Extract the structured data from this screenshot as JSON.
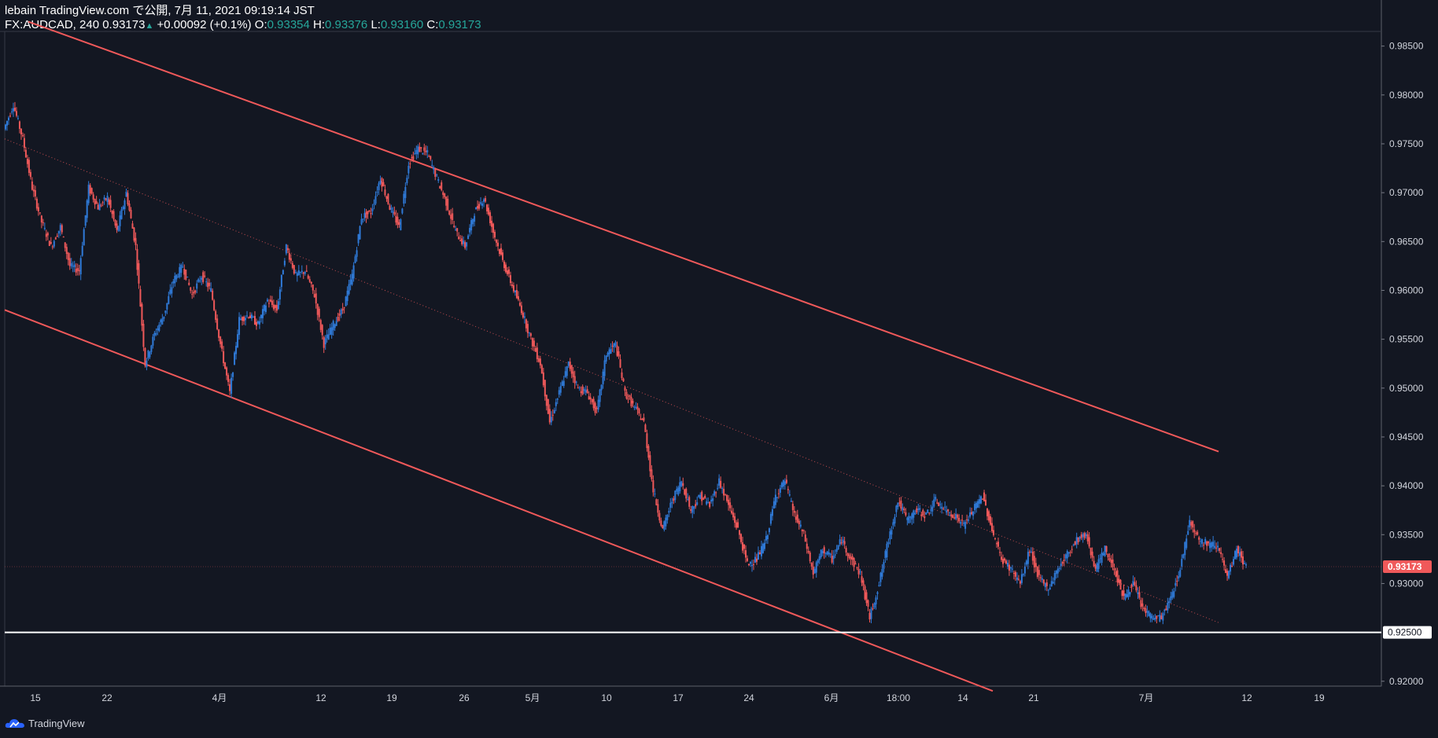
{
  "header": {
    "published": "lebain TradingView.com で公開, 7月 11, 2021 09:19:14 JST",
    "symbol": "FX:AUDCAD, 240",
    "last": "0.93173",
    "change": "+0.00092 (+0.1%)",
    "o_label": "O:",
    "o_val": "0.93354",
    "h_label": "H:",
    "h_val": "0.93376",
    "l_label": "L:",
    "l_val": "0.93160",
    "c_label": "C:",
    "c_val": "0.93173"
  },
  "footer": {
    "brand": "TradingView"
  },
  "colors": {
    "background": "#131722",
    "up": "#2f7ad8",
    "down": "#f0595a",
    "channel": "#f0595a",
    "support": "#ffffff",
    "axis_text": "#d1d4dc"
  },
  "chart_data": {
    "type": "candlestick",
    "ylim": [
      0.9195,
      0.9865
    ],
    "y_ticks": [
      "0.98500",
      "0.98000",
      "0.97500",
      "0.97000",
      "0.96500",
      "0.96000",
      "0.95500",
      "0.95000",
      "0.94500",
      "0.94000",
      "0.93500",
      "0.93000",
      "0.92000"
    ],
    "x_ticks": [
      "15",
      "22",
      "4月",
      "12",
      "19",
      "26",
      "5月",
      "10",
      "17",
      "24",
      "6月",
      "18:00",
      "14",
      "21",
      "7月",
      "12",
      "19"
    ],
    "price_label": "0.93173",
    "support_label": "0.92500",
    "support_level": 0.925,
    "path": [
      0.9765,
      0.979,
      0.9755,
      0.9705,
      0.967,
      0.9645,
      0.9665,
      0.9625,
      0.962,
      0.9705,
      0.9685,
      0.9695,
      0.966,
      0.97,
      0.9645,
      0.9525,
      0.9555,
      0.9575,
      0.961,
      0.9625,
      0.9595,
      0.9615,
      0.96,
      0.9545,
      0.9495,
      0.957,
      0.9575,
      0.9565,
      0.959,
      0.958,
      0.9645,
      0.9615,
      0.962,
      0.9595,
      0.9545,
      0.9565,
      0.958,
      0.9615,
      0.9675,
      0.968,
      0.9715,
      0.9685,
      0.9665,
      0.973,
      0.9745,
      0.974,
      0.9715,
      0.969,
      0.966,
      0.9645,
      0.968,
      0.9695,
      0.966,
      0.963,
      0.9605,
      0.958,
      0.955,
      0.9525,
      0.9465,
      0.9495,
      0.9525,
      0.95,
      0.9495,
      0.9475,
      0.9535,
      0.9545,
      0.9495,
      0.948,
      0.9465,
      0.9395,
      0.9355,
      0.9385,
      0.9405,
      0.9375,
      0.939,
      0.938,
      0.9405,
      0.938,
      0.9355,
      0.932,
      0.9325,
      0.9345,
      0.939,
      0.9405,
      0.937,
      0.935,
      0.931,
      0.9335,
      0.9325,
      0.9345,
      0.9325,
      0.931,
      0.9265,
      0.93,
      0.9345,
      0.9385,
      0.9365,
      0.9375,
      0.937,
      0.9385,
      0.9375,
      0.937,
      0.936,
      0.9375,
      0.939,
      0.9355,
      0.9325,
      0.9315,
      0.93,
      0.9335,
      0.9305,
      0.9295,
      0.9315,
      0.933,
      0.9345,
      0.935,
      0.9315,
      0.9335,
      0.9315,
      0.9285,
      0.93,
      0.9275,
      0.9265,
      0.9265,
      0.9285,
      0.9315,
      0.9365,
      0.9345,
      0.934,
      0.934,
      0.9305,
      0.9335,
      0.9317
    ],
    "channel_upper": {
      "from": [
        2.5,
        0.9875
      ],
      "to": [
        129,
        0.9435
      ]
    },
    "channel_lower": {
      "from": [
        0,
        0.958
      ],
      "to": [
        105,
        0.919
      ]
    },
    "channel_mid": {
      "from": [
        0,
        0.9755
      ],
      "to": [
        129,
        0.926
      ]
    }
  }
}
